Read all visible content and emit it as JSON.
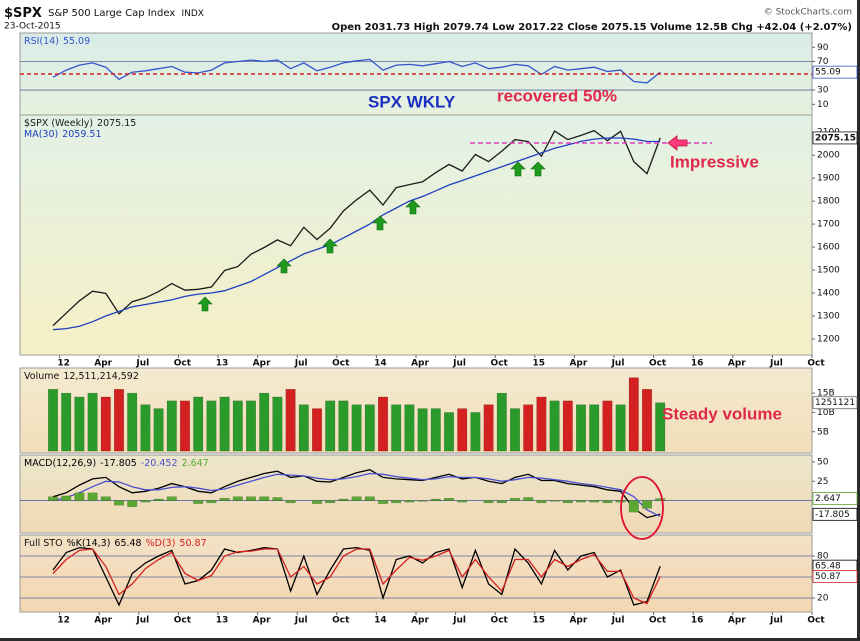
{
  "header": {
    "symbol": "$SPX",
    "name": "S&P 500 Large Cap Index",
    "exchange": "INDX",
    "date": "23-Oct-2015",
    "copyright": "© StockCharts.com",
    "quote": "Open 2031.73  High 2079.74  Low 2017.22  Close 2075.15  Volume 12.5B  Chg +42.04 (+2.07%)"
  },
  "annotations": {
    "spx_wkly": "SPX WKLY",
    "recovered": "recovered 50%",
    "impressive": "Impressive",
    "steady_volume": "Steady volume"
  },
  "chart_data": [
    {
      "type": "line",
      "xlim": [
        "2011-10",
        "2016-10"
      ],
      "x": [
        "2011-12",
        "2012-01",
        "2012-02",
        "2012-03",
        "2012-04",
        "2012-05",
        "2012-06",
        "2012-07",
        "2012-08",
        "2012-09",
        "2012-10",
        "2012-11",
        "2012-12",
        "2013-01",
        "2013-02",
        "2013-03",
        "2013-04",
        "2013-05",
        "2013-06",
        "2013-07",
        "2013-08",
        "2013-09",
        "2013-10",
        "2013-11",
        "2013-12",
        "2014-01",
        "2014-02",
        "2014-03",
        "2014-04",
        "2014-05",
        "2014-06",
        "2014-07",
        "2014-08",
        "2014-09",
        "2014-10",
        "2014-11",
        "2014-12",
        "2015-01",
        "2015-02",
        "2015-03",
        "2015-04",
        "2015-05",
        "2015-06",
        "2015-07",
        "2015-08",
        "2015-09",
        "2015-10"
      ],
      "series": [
        {
          "name": "RSI(14)",
          "color": "#3355cc",
          "tag": true,
          "values": [
            48,
            58,
            65,
            68,
            62,
            45,
            55,
            57,
            60,
            63,
            55,
            54,
            58,
            68,
            70,
            72,
            70,
            72,
            60,
            68,
            57,
            62,
            68,
            71,
            73,
            58,
            65,
            66,
            64,
            67,
            70,
            63,
            68,
            60,
            62,
            66,
            64,
            52,
            63,
            58,
            60,
            62,
            56,
            58,
            42,
            40,
            55.09
          ]
        }
      ],
      "ylim": [
        -5,
        110
      ],
      "yticks": [
        10,
        30,
        50,
        70,
        90
      ],
      "hlines": [
        30,
        70
      ]
    },
    {
      "type": "line",
      "xlim": [
        "2011-10",
        "2016-10"
      ],
      "x": [
        "2011-12",
        "2012-01",
        "2012-02",
        "2012-03",
        "2012-04",
        "2012-05",
        "2012-06",
        "2012-07",
        "2012-08",
        "2012-09",
        "2012-10",
        "2012-11",
        "2012-12",
        "2013-01",
        "2013-02",
        "2013-03",
        "2013-04",
        "2013-05",
        "2013-06",
        "2013-07",
        "2013-08",
        "2013-09",
        "2013-10",
        "2013-11",
        "2013-12",
        "2014-01",
        "2014-02",
        "2014-03",
        "2014-04",
        "2014-05",
        "2014-06",
        "2014-07",
        "2014-08",
        "2014-09",
        "2014-10",
        "2014-11",
        "2014-12",
        "2015-01",
        "2015-02",
        "2015-03",
        "2015-04",
        "2015-05",
        "2015-06",
        "2015-07",
        "2015-08",
        "2015-09",
        "2015-10"
      ],
      "series": [
        {
          "name": "$SPX (Weekly)",
          "color": "#1a1a1a",
          "tag": true,
          "values": [
            1258,
            1312,
            1366,
            1408,
            1398,
            1310,
            1362,
            1379,
            1406,
            1441,
            1412,
            1416,
            1426,
            1498,
            1515,
            1569,
            1598,
            1631,
            1606,
            1686,
            1633,
            1682,
            1757,
            1806,
            1848,
            1783,
            1859,
            1872,
            1884,
            1924,
            1960,
            1931,
            2003,
            1972,
            2018,
            2068,
            2059,
            1995,
            2105,
            2068,
            2086,
            2107,
            2063,
            2104,
            1972,
            1920,
            2075.15
          ]
        },
        {
          "name": "MA(30)",
          "color": "#1f3fbf",
          "values": [
            1240,
            1245,
            1255,
            1275,
            1300,
            1320,
            1340,
            1350,
            1360,
            1370,
            1385,
            1395,
            1400,
            1410,
            1430,
            1450,
            1480,
            1510,
            1540,
            1570,
            1590,
            1610,
            1640,
            1670,
            1700,
            1740,
            1770,
            1800,
            1820,
            1845,
            1870,
            1890,
            1910,
            1930,
            1950,
            1970,
            1990,
            2010,
            2030,
            2045,
            2060,
            2070,
            2075,
            2075,
            2070,
            2060,
            2059.51
          ]
        }
      ],
      "ylim": [
        1130,
        2175
      ],
      "yticks": [
        1200,
        1300,
        1400,
        1500,
        1600,
        1700,
        1800,
        1900,
        2000,
        2100
      ],
      "xticks": [
        {
          "value": "2012-01",
          "label": "12"
        },
        {
          "value": "2012-04",
          "label": "Apr"
        },
        {
          "value": "2012-07",
          "label": "Jul"
        },
        {
          "value": "2012-10",
          "label": "Oct"
        },
        {
          "value": "2013-01",
          "label": "13"
        },
        {
          "value": "2013-04",
          "label": "Apr"
        },
        {
          "value": "2013-07",
          "label": "Jul"
        },
        {
          "value": "2013-10",
          "label": "Oct"
        },
        {
          "value": "2014-01",
          "label": "14"
        },
        {
          "value": "2014-04",
          "label": "Apr"
        },
        {
          "value": "2014-07",
          "label": "Jul"
        },
        {
          "value": "2014-10",
          "label": "Oct"
        },
        {
          "value": "2015-01",
          "label": "15"
        },
        {
          "value": "2015-04",
          "label": "Apr"
        },
        {
          "value": "2015-07",
          "label": "Jul"
        },
        {
          "value": "2015-10",
          "label": "Oct"
        },
        {
          "value": "2016-01",
          "label": "16"
        },
        {
          "value": "2016-04",
          "label": "Apr"
        },
        {
          "value": "2016-07",
          "label": "Jul"
        },
        {
          "value": "2016-10",
          "label": "Oct"
        }
      ]
    },
    {
      "type": "bar",
      "xlim": [
        "2011-10",
        "2016-10"
      ],
      "legend_value": "12,511,214,592",
      "tag_label": "1251121",
      "x": [
        "2011-12",
        "2012-01",
        "2012-02",
        "2012-03",
        "2012-04",
        "2012-05",
        "2012-06",
        "2012-07",
        "2012-08",
        "2012-09",
        "2012-10",
        "2012-11",
        "2012-12",
        "2013-01",
        "2013-02",
        "2013-03",
        "2013-04",
        "2013-05",
        "2013-06",
        "2013-07",
        "2013-08",
        "2013-09",
        "2013-10",
        "2013-11",
        "2013-12",
        "2014-01",
        "2014-02",
        "2014-03",
        "2014-04",
        "2014-05",
        "2014-06",
        "2014-07",
        "2014-08",
        "2014-09",
        "2014-10",
        "2014-11",
        "2014-12",
        "2015-01",
        "2015-02",
        "2015-03",
        "2015-04",
        "2015-05",
        "2015-06",
        "2015-07",
        "2015-08",
        "2015-09",
        "2015-10"
      ],
      "series": [
        {
          "name": "Volume",
          "type": "bar",
          "values": [
            16,
            15,
            14,
            15,
            14,
            16,
            15,
            12,
            11,
            13,
            13,
            14,
            13,
            14,
            13,
            13,
            15,
            14,
            16,
            12,
            11,
            13,
            13,
            12,
            12,
            14,
            12,
            12,
            11,
            11,
            10,
            11,
            10,
            12,
            15,
            11,
            12,
            14,
            13,
            13,
            12,
            12,
            13,
            12,
            19,
            16,
            12.511214592
          ],
          "colors": [
            "#2a9a2a",
            "#2a9a2a",
            "#2a9a2a",
            "#2a9a2a",
            "#d42020",
            "#d42020",
            "#2a9a2a",
            "#2a9a2a",
            "#2a9a2a",
            "#2a9a2a",
            "#d42020",
            "#2a9a2a",
            "#2a9a2a",
            "#2a9a2a",
            "#2a9a2a",
            "#2a9a2a",
            "#2a9a2a",
            "#2a9a2a",
            "#d42020",
            "#2a9a2a",
            "#d42020",
            "#2a9a2a",
            "#2a9a2a",
            "#2a9a2a",
            "#2a9a2a",
            "#d42020",
            "#2a9a2a",
            "#2a9a2a",
            "#2a9a2a",
            "#2a9a2a",
            "#2a9a2a",
            "#d42020",
            "#2a9a2a",
            "#d42020",
            "#2a9a2a",
            "#2a9a2a",
            "#d42020",
            "#d42020",
            "#2a9a2a",
            "#d42020",
            "#2a9a2a",
            "#2a9a2a",
            "#d42020",
            "#2a9a2a",
            "#d42020",
            "#d42020",
            "#2a9a2a"
          ]
        }
      ],
      "ylim": [
        -0.5,
        21.5
      ],
      "yticks": [
        {
          "value": 5,
          "label": "5B"
        },
        {
          "value": 10,
          "label": "10B"
        },
        {
          "value": 15,
          "label": "15B"
        }
      ]
    },
    {
      "type": "line",
      "xlim": [
        "2011-10",
        "2016-10"
      ],
      "x": [
        "2011-12",
        "2012-01",
        "2012-02",
        "2012-03",
        "2012-04",
        "2012-05",
        "2012-06",
        "2012-07",
        "2012-08",
        "2012-09",
        "2012-10",
        "2012-11",
        "2012-12",
        "2013-01",
        "2013-02",
        "2013-03",
        "2013-04",
        "2013-05",
        "2013-06",
        "2013-07",
        "2013-08",
        "2013-09",
        "2013-10",
        "2013-11",
        "2013-12",
        "2014-01",
        "2014-02",
        "2014-03",
        "2014-04",
        "2014-05",
        "2014-06",
        "2014-07",
        "2014-08",
        "2014-09",
        "2014-10",
        "2014-11",
        "2014-12",
        "2015-01",
        "2015-02",
        "2015-03",
        "2015-04",
        "2015-05",
        "2015-06",
        "2015-07",
        "2015-08",
        "2015-09",
        "2015-10"
      ],
      "series": [
        {
          "name": "MACD(12,26,9)",
          "color": "#000000",
          "tag": true,
          "values": [
            5,
            10,
            20,
            28,
            30,
            18,
            10,
            12,
            16,
            22,
            18,
            12,
            10,
            18,
            25,
            30,
            35,
            38,
            30,
            32,
            25,
            24,
            30,
            36,
            40,
            30,
            28,
            27,
            26,
            30,
            34,
            28,
            30,
            25,
            22,
            30,
            34,
            26,
            26,
            22,
            20,
            18,
            14,
            12,
            -10,
            -22,
            -17.805
          ]
        },
        {
          "color": "#4a4fd0",
          "values": [
            0,
            4,
            10,
            18,
            25,
            24,
            18,
            14,
            14,
            17,
            18,
            16,
            13,
            15,
            20,
            25,
            30,
            34,
            33,
            32,
            29,
            27,
            28,
            31,
            35,
            34,
            31,
            29,
            27,
            28,
            31,
            30,
            30,
            28,
            25,
            27,
            30,
            29,
            27,
            25,
            22,
            20,
            17,
            14,
            5,
            -12,
            -20.452
          ]
        },
        {
          "color": "#5aa832",
          "type": "bar",
          "tag": true,
          "values": [
            5,
            6,
            10,
            10,
            5,
            -6,
            -8,
            -2,
            2,
            5,
            0,
            -4,
            -3,
            3,
            5,
            5,
            5,
            4,
            -3,
            0,
            -4,
            -3,
            2,
            5,
            5,
            -4,
            -3,
            -2,
            -1,
            2,
            3,
            -2,
            0,
            -3,
            -3,
            3,
            4,
            -3,
            -1,
            -3,
            -2,
            -2,
            -3,
            -2,
            -15,
            -10,
            2.647
          ]
        }
      ],
      "ylim": [
        -42,
        59
      ],
      "yticks": [
        25,
        50
      ],
      "hlines": [
        0
      ]
    },
    {
      "type": "line",
      "label": "Full STO",
      "xlim": [
        "2011-10",
        "2016-10"
      ],
      "x": [
        "2011-12",
        "2012-01",
        "2012-02",
        "2012-03",
        "2012-04",
        "2012-05",
        "2012-06",
        "2012-07",
        "2012-08",
        "2012-09",
        "2012-10",
        "2012-11",
        "2012-12",
        "2013-01",
        "2013-02",
        "2013-03",
        "2013-04",
        "2013-05",
        "2013-06",
        "2013-07",
        "2013-08",
        "2013-09",
        "2013-10",
        "2013-11",
        "2013-12",
        "2014-01",
        "2014-02",
        "2014-03",
        "2014-04",
        "2014-05",
        "2014-06",
        "2014-07",
        "2014-08",
        "2014-09",
        "2014-10",
        "2014-11",
        "2014-12",
        "2015-01",
        "2015-02",
        "2015-03",
        "2015-04",
        "2015-05",
        "2015-06",
        "2015-07",
        "2015-08",
        "2015-09",
        "2015-10"
      ],
      "series": [
        {
          "name": "%K(14,3)",
          "color": "#000000",
          "tag": true,
          "values": [
            60,
            85,
            92,
            90,
            50,
            10,
            55,
            70,
            80,
            88,
            40,
            45,
            60,
            90,
            85,
            88,
            92,
            90,
            30,
            80,
            25,
            60,
            90,
            92,
            88,
            20,
            75,
            80,
            70,
            85,
            90,
            35,
            88,
            40,
            25,
            90,
            70,
            40,
            88,
            60,
            80,
            85,
            50,
            60,
            10,
            15,
            65.48
          ]
        },
        {
          "name": "%D(3)",
          "color": "#d42020",
          "tag": true,
          "values": [
            55,
            75,
            88,
            90,
            65,
            25,
            40,
            62,
            75,
            85,
            55,
            45,
            52,
            80,
            86,
            87,
            90,
            90,
            50,
            65,
            40,
            50,
            80,
            90,
            90,
            40,
            60,
            78,
            74,
            80,
            88,
            50,
            75,
            50,
            30,
            75,
            75,
            50,
            75,
            65,
            75,
            82,
            58,
            58,
            20,
            12,
            50.87
          ]
        }
      ],
      "ylim": [
        0,
        110
      ],
      "yticks": [
        20,
        80
      ],
      "hlines": [
        20,
        50,
        80
      ],
      "xticks": [
        {
          "value": "2012-01",
          "label": "12"
        },
        {
          "value": "2012-04",
          "label": "Apr"
        },
        {
          "value": "2012-07",
          "label": "Jul"
        },
        {
          "value": "2012-10",
          "label": "Oct"
        },
        {
          "value": "2013-01",
          "label": "13"
        },
        {
          "value": "2013-04",
          "label": "Apr"
        },
        {
          "value": "2013-07",
          "label": "Jul"
        },
        {
          "value": "2013-10",
          "label": "Oct"
        },
        {
          "value": "2014-01",
          "label": "14"
        },
        {
          "value": "2014-04",
          "label": "Apr"
        },
        {
          "value": "2014-07",
          "label": "Jul"
        },
        {
          "value": "2014-10",
          "label": "Oct"
        },
        {
          "value": "2015-01",
          "label": "15"
        },
        {
          "value": "2015-04",
          "label": "Apr"
        },
        {
          "value": "2015-07",
          "label": "Jul"
        },
        {
          "value": "2015-10",
          "label": "Oct"
        },
        {
          "value": "2016-01",
          "label": "16"
        },
        {
          "value": "2016-04",
          "label": "Apr"
        },
        {
          "value": "2016-07",
          "label": "Jul"
        },
        {
          "value": "2016-10",
          "label": "Oct"
        }
      ]
    }
  ]
}
